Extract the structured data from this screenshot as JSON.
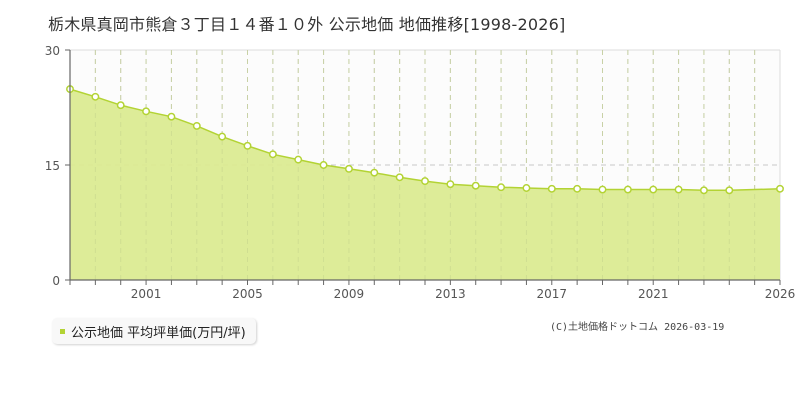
{
  "title": "栃木県真岡市熊倉３丁目１４番１０外 公示地価 地価推移[1998-2026]",
  "legend": {
    "label": "公示地価 平均坪単価(万円/坪)",
    "color": "#b3d334"
  },
  "copyright": "(C)土地価格ドットコム 2026-03-19",
  "colors": {
    "fill": "#dbeb92",
    "line": "#b3d334",
    "grid": "#c8c8c8",
    "axis": "#666666"
  },
  "chart_data": {
    "type": "area",
    "title": "栃木県真岡市熊倉３丁目１４番１０外 公示地価 地価推移[1998-2026]",
    "xlabel": "",
    "ylabel": "",
    "ylim": [
      0,
      30
    ],
    "xlim": [
      1998,
      2026
    ],
    "yticks": [
      "0",
      "15",
      "30"
    ],
    "xticks": [
      "2001",
      "2005",
      "2009",
      "2013",
      "2017",
      "2021",
      "2026"
    ],
    "grid": true,
    "legend_position": "bottom-left",
    "series": [
      {
        "name": "公示地価 平均坪単価(万円/坪)",
        "x": [
          1998,
          1999,
          2000,
          2001,
          2002,
          2003,
          2004,
          2005,
          2006,
          2007,
          2008,
          2009,
          2010,
          2011,
          2012,
          2013,
          2014,
          2015,
          2016,
          2017,
          2018,
          2019,
          2020,
          2021,
          2022,
          2023,
          2024,
          2026
        ],
        "values": [
          24.9,
          23.9,
          22.8,
          22.0,
          21.3,
          20.1,
          18.7,
          17.5,
          16.4,
          15.7,
          15.0,
          14.5,
          14.0,
          13.4,
          12.9,
          12.5,
          12.3,
          12.1,
          12.0,
          11.9,
          11.9,
          11.8,
          11.8,
          11.8,
          11.8,
          11.7,
          11.7,
          11.9
        ]
      }
    ]
  }
}
